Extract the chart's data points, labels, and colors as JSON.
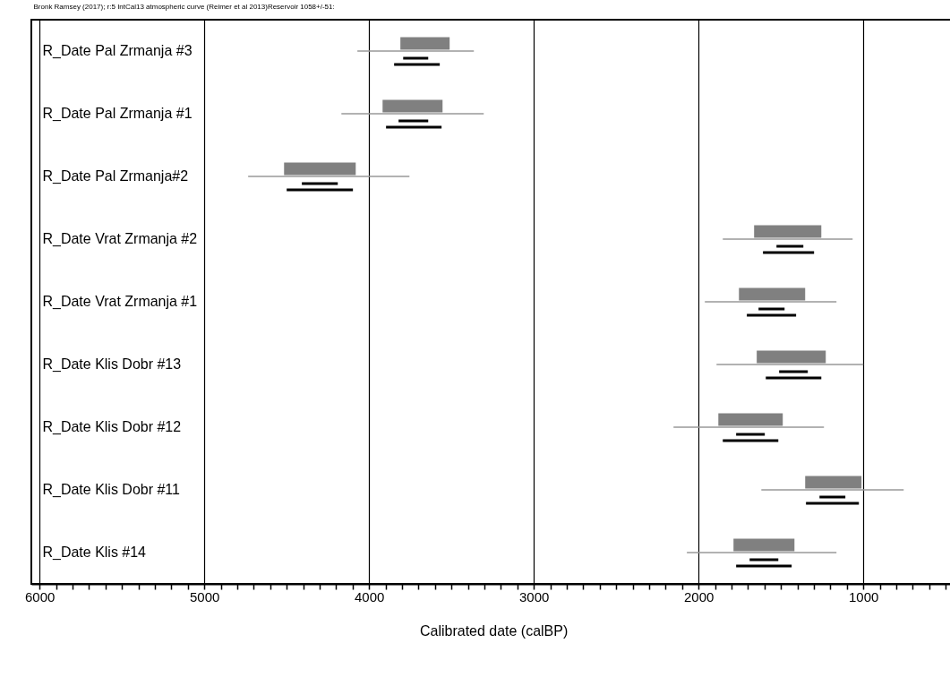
{
  "chart_data": {
    "type": "bar",
    "orientation": "horizontal",
    "title": "Bronk Ramsey (2017); r:5 IntCal13 atmospheric curve (Reimer et al 2013)Reservoir 1058+/-51:",
    "xlabel": "Calibrated date (calBP)",
    "categories": [
      "R_Date Pal Zrmanja #3",
      "R_Date Pal Zrmanja #1",
      "R_Date Pal Zrmanja#2",
      "R_Date Vrat Zrmanja #2",
      "R_Date Vrat Zrmanja #1",
      "R_Date Klis Dobr #13",
      "R_Date Klis Dobr #12",
      "R_Date Klis Dobr #11",
      "R_Date Klis #14"
    ],
    "series": [
      {
        "color": "#999999",
        "base": [
          3364,
          3304,
          3755,
          1065,
          1163,
          1000,
          1239,
          755,
          1163
        ],
        "values": [
          707,
          864,
          979,
          788,
          799,
          891,
          913,
          864,
          908
        ]
      },
      {
        "color": "#808080",
        "base": [
          3511,
          3554,
          4081,
          1255,
          1353,
          1228,
          1489,
          1011,
          1418
        ],
        "values": [
          299,
          364,
          435,
          408,
          402,
          419,
          391,
          342,
          370
        ]
      },
      {
        "color": "#000000",
        "base": [
          3641,
          3641,
          4190,
          1364,
          1478,
          1337,
          1598,
          1109,
          1516
        ],
        "values": [
          152,
          180,
          218,
          163,
          158,
          174,
          174,
          157,
          174
        ]
      },
      {
        "color": "#000000",
        "base": [
          3571,
          3560,
          4098,
          1299,
          1408,
          1255,
          1516,
          1027,
          1435
        ],
        "values": [
          277,
          337,
          402,
          310,
          299,
          337,
          337,
          321,
          337
        ]
      }
    ],
    "xlim": [
      6050,
      440
    ],
    "xticks": [
      6000,
      {
        "value": 5900,
        "label": null
      },
      {
        "value": 5800,
        "label": null
      },
      {
        "value": 5700,
        "label": null
      },
      {
        "value": 5600,
        "label": null
      },
      {
        "value": 5500,
        "label": null
      },
      {
        "value": 5400,
        "label": null
      },
      {
        "value": 5300,
        "label": null
      },
      {
        "value": 5200,
        "label": null
      },
      {
        "value": 5100,
        "label": null
      },
      5000,
      {
        "value": 4900,
        "label": null
      },
      {
        "value": 4800,
        "label": null
      },
      {
        "value": 4700,
        "label": null
      },
      {
        "value": 4600,
        "label": null
      },
      {
        "value": 4500,
        "label": null
      },
      {
        "value": 4400,
        "label": null
      },
      {
        "value": 4300,
        "label": null
      },
      {
        "value": 4200,
        "label": null
      },
      {
        "value": 4100,
        "label": null
      },
      4000,
      {
        "value": 3900,
        "label": null
      },
      {
        "value": 3800,
        "label": null
      },
      {
        "value": 3700,
        "label": null
      },
      {
        "value": 3600,
        "label": null
      },
      {
        "value": 3500,
        "label": null
      },
      {
        "value": 3400,
        "label": null
      },
      {
        "value": 3300,
        "label": null
      },
      {
        "value": 3200,
        "label": null
      },
      {
        "value": 3100,
        "label": null
      },
      3000,
      {
        "value": 2900,
        "label": null
      },
      {
        "value": 2800,
        "label": null
      },
      {
        "value": 2700,
        "label": null
      },
      {
        "value": 2600,
        "label": null
      },
      {
        "value": 2500,
        "label": null
      },
      {
        "value": 2400,
        "label": null
      },
      {
        "value": 2300,
        "label": null
      },
      {
        "value": 2200,
        "label": null
      },
      {
        "value": 2100,
        "label": null
      },
      2000,
      {
        "value": 1900,
        "label": null
      },
      {
        "value": 1800,
        "label": null
      },
      {
        "value": 1700,
        "label": null
      },
      {
        "value": 1600,
        "label": null
      },
      {
        "value": 1500,
        "label": null
      },
      {
        "value": 1400,
        "label": null
      },
      {
        "value": 1300,
        "label": null
      },
      {
        "value": 1200,
        "label": null
      },
      {
        "value": 1100,
        "label": null
      },
      1000,
      {
        "value": 900,
        "label": null
      },
      {
        "value": 800,
        "label": null
      },
      {
        "value": 700,
        "label": null
      },
      {
        "value": 600,
        "label": null
      },
      {
        "value": 500,
        "label": null
      }
    ],
    "grid": "x"
  }
}
